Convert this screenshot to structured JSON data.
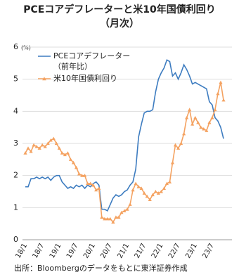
{
  "chart_data": {
    "type": "line",
    "title": "PCEコアデフレーターと米10年国債利回り",
    "subtitle": "（月次）",
    "y_unit": "(%)",
    "source": "出所：Bloombergのデータをもとに東洋証券作成",
    "categories": [
      "18/1",
      null,
      null,
      null,
      null,
      null,
      "18/7",
      null,
      null,
      null,
      null,
      null,
      "19/1",
      null,
      null,
      null,
      null,
      null,
      "19/7",
      null,
      null,
      null,
      null,
      null,
      "20/1",
      null,
      null,
      null,
      null,
      null,
      "20/7",
      null,
      null,
      null,
      null,
      null,
      "21/1",
      null,
      null,
      null,
      null,
      null,
      "21/7",
      null,
      null,
      null,
      null,
      null,
      "22/1",
      null,
      null,
      null,
      null,
      null,
      "22/7",
      null,
      null,
      null,
      null,
      null,
      "23/1",
      null,
      null,
      null,
      null,
      null,
      "23/7",
      null,
      null,
      null,
      null
    ],
    "series": [
      {
        "name": "PCEコアデフレーター",
        "note": "（前年比）",
        "color": "#3d7cc0",
        "marker": "none",
        "values": [
          1.65,
          1.65,
          1.9,
          1.9,
          1.95,
          1.9,
          1.95,
          1.9,
          1.95,
          1.85,
          1.95,
          2.0,
          2.0,
          1.8,
          1.7,
          1.6,
          1.65,
          1.6,
          1.7,
          1.65,
          1.7,
          1.6,
          1.7,
          1.65,
          1.75,
          1.8,
          1.7,
          0.95,
          0.95,
          0.9,
          1.1,
          1.3,
          1.4,
          1.35,
          1.4,
          1.5,
          1.55,
          1.7,
          1.8,
          2.2,
          3.2,
          3.6,
          3.95,
          4.0,
          4.0,
          4.05,
          4.6,
          5.0,
          5.2,
          5.35,
          5.6,
          5.55,
          5.1,
          5.2,
          5.0,
          5.2,
          5.45,
          5.3,
          5.1,
          4.85,
          4.9,
          4.85,
          4.8,
          4.75,
          4.7,
          4.3,
          4.2,
          3.8,
          3.7,
          3.5,
          3.15
        ]
      },
      {
        "name": "米10年国債利回り",
        "color": "#f4a261",
        "marker": "triangle",
        "values": [
          2.7,
          2.85,
          2.75,
          2.95,
          2.9,
          2.85,
          2.95,
          2.9,
          3.0,
          3.1,
          3.15,
          3.0,
          2.85,
          2.7,
          2.65,
          2.7,
          2.5,
          2.4,
          2.25,
          2.05,
          2.0,
          2.0,
          1.75,
          1.75,
          1.7,
          1.55,
          1.6,
          0.7,
          0.65,
          0.65,
          0.65,
          0.55,
          0.7,
          0.7,
          0.85,
          0.9,
          0.95,
          1.1,
          1.55,
          1.75,
          1.65,
          1.6,
          1.45,
          1.35,
          1.25,
          1.4,
          1.5,
          1.45,
          1.5,
          1.6,
          1.75,
          1.8,
          2.4,
          2.95,
          2.85,
          3.0,
          3.3,
          3.8,
          4.05,
          3.6,
          3.8,
          3.65,
          3.5,
          3.45,
          3.4,
          3.65,
          3.8,
          4.05,
          4.55,
          4.9,
          4.35
        ]
      }
    ],
    "ylim": [
      0,
      6
    ],
    "yticks": [
      0,
      1,
      2,
      3,
      4,
      5,
      6
    ],
    "grid": true
  }
}
